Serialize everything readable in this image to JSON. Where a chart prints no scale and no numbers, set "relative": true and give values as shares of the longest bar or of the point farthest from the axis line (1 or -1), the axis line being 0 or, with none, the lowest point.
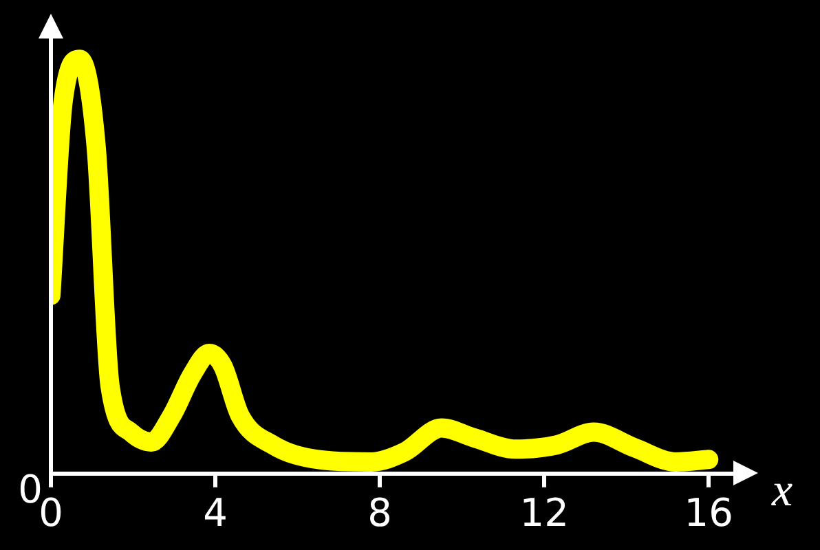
{
  "chart_data": {
    "type": "line",
    "relative": true,
    "xlabel": "x",
    "annotations": [
      "0"
    ],
    "x": [
      0,
      0.3,
      0.7,
      1.1,
      1.44,
      1.94,
      2.44,
      2.94,
      3.44,
      3.85,
      4.18,
      4.6,
      5.4,
      6.5,
      7.8,
      8.6,
      9.5,
      10.3,
      11.3,
      12.3,
      13.2,
      14.2,
      15.2,
      16
    ],
    "series": [
      {
        "color": "#ffff00",
        "values": [
          0.43,
          0.9,
          1,
          0.79,
          0.21,
          0.1,
          0.076,
          0.14,
          0.24,
          0.29,
          0.26,
          0.14,
          0.069,
          0.034,
          0.028,
          0.052,
          0.11,
          0.086,
          0.059,
          0.069,
          0.1,
          0.062,
          0.028,
          0.034
        ]
      }
    ],
    "xlim": [
      0,
      17
    ],
    "xticks": [
      0,
      4,
      8,
      12,
      16
    ],
    "grid": false,
    "legend": false,
    "marker": "none",
    "line_style": "solid"
  }
}
